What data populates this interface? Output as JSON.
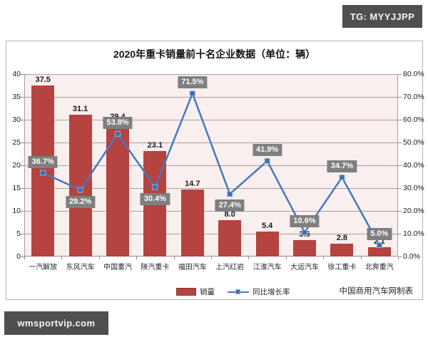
{
  "badges": {
    "top_right": "TG: MYYJJPP",
    "bottom_left": "wmsportvip.com"
  },
  "chart_data": {
    "type": "bar",
    "subtype": "combo-bar-line",
    "title": "2020年重卡销量前十名企业数据（单位：辆）",
    "categories": [
      "一汽解放",
      "东风汽车",
      "中国重汽",
      "陕汽重卡",
      "福田汽车",
      "上汽红岩",
      "江淮汽车",
      "大运汽车",
      "徐工重卡",
      "北奔重汽"
    ],
    "series": [
      {
        "name": "销量",
        "type": "bar",
        "axis": "left",
        "color": "#b5433f",
        "values": [
          37.5,
          31.1,
          29.4,
          23.1,
          14.7,
          8.0,
          5.4,
          3.6,
          2.8,
          2.1
        ],
        "labels": [
          "37.5",
          "31.1",
          "29.4",
          "23.1",
          "14.7",
          "8.0",
          "5.4",
          "3.6",
          "2.8",
          "2.1"
        ]
      },
      {
        "name": "同比增长率",
        "type": "line",
        "axis": "right",
        "color": "#4878bc",
        "marker_color": "#3f6eb5",
        "values": [
          36.7,
          29.2,
          53.8,
          30.4,
          71.5,
          27.4,
          41.9,
          10.6,
          34.7,
          5.0
        ],
        "labels": [
          "36.7%",
          "29.2%",
          "53.8%",
          "30.4%",
          "71.5%",
          "27.4%",
          "41.9%",
          "10.6%",
          "34.7%",
          "5.0%"
        ],
        "label_placement": [
          "above",
          "below",
          "above",
          "below",
          "above",
          "below",
          "above",
          "above",
          "above",
          "above"
        ]
      }
    ],
    "left_axis": {
      "min": 0,
      "max": 40,
      "step": 5,
      "ticks": [
        "0",
        "5",
        "10",
        "15",
        "20",
        "25",
        "30",
        "35",
        "40"
      ]
    },
    "right_axis": {
      "min": 0,
      "max": 80,
      "step": 10,
      "ticks": [
        "0.0%",
        "10.0%",
        "20.0%",
        "30.0%",
        "40.0%",
        "50.0%",
        "60.0%",
        "70.0%",
        "80.0%"
      ]
    },
    "legend_position": "bottom",
    "grid": "horizontal",
    "source_note": "中国商用汽车网制表",
    "colors": {
      "plot_background": "#f9efee",
      "gridline": "#ab9e9c",
      "pct_label_background": "#7f7f7f",
      "badge_background": "#4f4f4f"
    }
  }
}
